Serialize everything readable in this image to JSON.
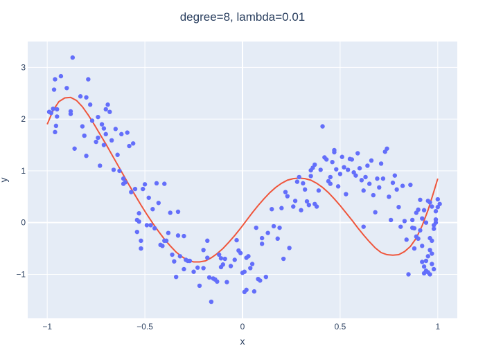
{
  "chart_data": {
    "type": "scatter",
    "title": "degree=8, lambda=0.01",
    "xlabel": "x",
    "ylabel": "y",
    "xlim": [
      -1.1,
      1.1
    ],
    "ylim": [
      -1.85,
      3.5
    ],
    "x_ticks": [
      -1,
      -0.5,
      0,
      0.5,
      1
    ],
    "x_tick_labels": [
      "−1",
      "−0.5",
      "0",
      "0.5",
      "1"
    ],
    "y_ticks": [
      -1,
      0,
      1,
      2,
      3
    ],
    "y_tick_labels": [
      "−1",
      "0",
      "1",
      "2",
      "3"
    ],
    "grid": true,
    "legend": "none",
    "colors": {
      "plot_background": "#e5ecf6",
      "grid": "#ffffff",
      "points": "#636efa",
      "fit_line": "#ef553b"
    },
    "series": [
      {
        "type": "scatter",
        "points": [
          [
            -0.99,
            2.14
          ],
          [
            -0.98,
            2.12
          ],
          [
            -0.97,
            2.2
          ],
          [
            -0.965,
            2.57
          ],
          [
            -0.96,
            2.77
          ],
          [
            -0.96,
            1.75
          ],
          [
            -0.955,
            1.87
          ],
          [
            -0.95,
            2.05
          ],
          [
            -0.95,
            2.19
          ],
          [
            -0.93,
            2.83
          ],
          [
            -0.9,
            2.6
          ],
          [
            -0.88,
            2.1
          ],
          [
            -0.88,
            2.15
          ],
          [
            -0.87,
            3.19
          ],
          [
            -0.86,
            1.43
          ],
          [
            -0.83,
            2.44
          ],
          [
            -0.82,
            1.86
          ],
          [
            -0.81,
            1.68
          ],
          [
            -0.8,
            1.29
          ],
          [
            -0.8,
            2.42
          ],
          [
            -0.79,
            2.77
          ],
          [
            -0.78,
            2.28
          ],
          [
            -0.77,
            1.97
          ],
          [
            -0.75,
            1.56
          ],
          [
            -0.74,
            1.64
          ],
          [
            -0.74,
            2.04
          ],
          [
            -0.73,
            1.1
          ],
          [
            -0.72,
            1.9
          ],
          [
            -0.71,
            1.5
          ],
          [
            -0.71,
            1.82
          ],
          [
            -0.7,
            1.71
          ],
          [
            -0.7,
            2.19
          ],
          [
            -0.69,
            2.28
          ],
          [
            -0.68,
            2.14
          ],
          [
            -0.67,
            1.59
          ],
          [
            -0.66,
            1.02
          ],
          [
            -0.65,
            1.81
          ],
          [
            -0.64,
            1.31
          ],
          [
            -0.63,
            1.0
          ],
          [
            -0.62,
            1.71
          ],
          [
            -0.61,
            0.75
          ],
          [
            -0.61,
            0.85
          ],
          [
            -0.6,
            0.78
          ],
          [
            -0.59,
            1.74
          ],
          [
            -0.58,
            1.48
          ],
          [
            -0.57,
            0.59
          ],
          [
            -0.56,
            1.53
          ],
          [
            -0.55,
            0.65
          ],
          [
            -0.54,
            0.05
          ],
          [
            -0.54,
            -0.18
          ],
          [
            -0.53,
            0.18
          ],
          [
            -0.53,
            0.02
          ],
          [
            -0.52,
            -0.5
          ],
          [
            -0.52,
            -0.35
          ],
          [
            -0.51,
            0.65
          ],
          [
            -0.5,
            0.74
          ],
          [
            -0.49,
            -0.05
          ],
          [
            -0.48,
            0.48
          ],
          [
            -0.47,
            -0.05
          ],
          [
            -0.46,
            0.26
          ],
          [
            -0.45,
            -0.11
          ],
          [
            -0.44,
            0.76
          ],
          [
            -0.43,
            0.38
          ],
          [
            -0.42,
            -0.43
          ],
          [
            -0.41,
            -0.45
          ],
          [
            -0.4,
            0.75
          ],
          [
            -0.4,
            -0.35
          ],
          [
            -0.39,
            -0.35
          ],
          [
            -0.38,
            -0.2
          ],
          [
            -0.37,
            0.19
          ],
          [
            -0.36,
            -0.62
          ],
          [
            -0.35,
            -0.75
          ],
          [
            -0.34,
            -1.05
          ],
          [
            -0.33,
            0.21
          ],
          [
            -0.33,
            -0.25
          ],
          [
            -0.32,
            -0.65
          ],
          [
            -0.3,
            -0.26
          ],
          [
            -0.3,
            -0.9
          ],
          [
            -0.29,
            -0.72
          ],
          [
            -0.28,
            -0.74
          ],
          [
            -0.27,
            -0.74
          ],
          [
            -0.25,
            -0.95
          ],
          [
            -0.23,
            -0.87
          ],
          [
            -0.22,
            -1.22
          ],
          [
            -0.2,
            -0.88
          ],
          [
            -0.2,
            -0.53
          ],
          [
            -0.18,
            -0.35
          ],
          [
            -0.18,
            -0.68
          ],
          [
            -0.17,
            -1.06
          ],
          [
            -0.16,
            -1.53
          ],
          [
            -0.15,
            -1.08
          ],
          [
            -0.14,
            -1.1
          ],
          [
            -0.13,
            -1.14
          ],
          [
            -0.12,
            -0.62
          ],
          [
            -0.11,
            -0.86
          ],
          [
            -0.11,
            -0.69
          ],
          [
            -0.1,
            -0.81
          ],
          [
            -0.09,
            -0.7
          ],
          [
            -0.08,
            -1.15
          ],
          [
            -0.06,
            -0.84
          ],
          [
            -0.04,
            -0.72
          ],
          [
            -0.03,
            -0.34
          ],
          [
            -0.02,
            -0.54
          ],
          [
            -0.01,
            -0.59
          ],
          [
            0.0,
            -0.97
          ],
          [
            0.01,
            -1.34
          ],
          [
            0.01,
            -0.95
          ],
          [
            0.02,
            -1.3
          ],
          [
            0.02,
            -0.68
          ],
          [
            0.03,
            -0.65
          ],
          [
            0.04,
            -0.88
          ],
          [
            0.05,
            -0.8
          ],
          [
            0.06,
            -1.33
          ],
          [
            0.07,
            -0.1
          ],
          [
            0.08,
            -1.09
          ],
          [
            0.09,
            -1.12
          ],
          [
            0.1,
            -0.41
          ],
          [
            0.1,
            -0.3
          ],
          [
            0.12,
            -1.05
          ],
          [
            0.13,
            -0.2
          ],
          [
            0.15,
            0.26
          ],
          [
            0.16,
            -0.07
          ],
          [
            0.18,
            -0.31
          ],
          [
            0.19,
            -0.1
          ],
          [
            0.2,
            0.28
          ],
          [
            0.21,
            -0.7
          ],
          [
            0.22,
            0.59
          ],
          [
            0.23,
            0.51
          ],
          [
            0.24,
            -0.49
          ],
          [
            0.26,
            0.31
          ],
          [
            0.27,
            0.42
          ],
          [
            0.28,
            0.79
          ],
          [
            0.29,
            0.88
          ],
          [
            0.3,
            0.24
          ],
          [
            0.31,
            0.76
          ],
          [
            0.32,
            0.64
          ],
          [
            0.33,
            0.41
          ],
          [
            0.34,
            0.34
          ],
          [
            0.35,
            0.9
          ],
          [
            0.35,
            1.01
          ],
          [
            0.36,
            1.06
          ],
          [
            0.37,
            0.36
          ],
          [
            0.37,
            1.12
          ],
          [
            0.38,
            0.31
          ],
          [
            0.39,
            0.62
          ],
          [
            0.4,
            1.02
          ],
          [
            0.41,
            1.86
          ],
          [
            0.42,
            1.26
          ],
          [
            0.43,
            1.22
          ],
          [
            0.44,
            0.8
          ],
          [
            0.45,
            0.88
          ],
          [
            0.45,
            0.75
          ],
          [
            0.46,
            1.17
          ],
          [
            0.47,
            1.36
          ],
          [
            0.47,
            1.4
          ],
          [
            0.48,
            1.03
          ],
          [
            0.49,
            0.7
          ],
          [
            0.5,
            0.94
          ],
          [
            0.51,
            1.27
          ],
          [
            0.52,
            1.07
          ],
          [
            0.53,
            0.55
          ],
          [
            0.54,
            1.02
          ],
          [
            0.55,
            1.23
          ],
          [
            0.56,
            1.22
          ],
          [
            0.57,
            0.97
          ],
          [
            0.58,
            0.91
          ],
          [
            0.59,
            1.34
          ],
          [
            0.6,
            1.05
          ],
          [
            0.61,
            0.82
          ],
          [
            0.62,
            0.62
          ],
          [
            0.62,
            -0.08
          ],
          [
            0.63,
            0.88
          ],
          [
            0.64,
            1.1
          ],
          [
            0.65,
            0.75
          ],
          [
            0.66,
            1.2
          ],
          [
            0.67,
            0.53
          ],
          [
            0.68,
            0.2
          ],
          [
            0.69,
            0.85
          ],
          [
            0.7,
            0.68
          ],
          [
            0.71,
            1.14
          ],
          [
            0.72,
            0.85
          ],
          [
            0.73,
            1.37
          ],
          [
            0.74,
            1.43
          ],
          [
            0.75,
            0.5
          ],
          [
            0.76,
            0.05
          ],
          [
            0.77,
            0.77
          ],
          [
            0.78,
            0.91
          ],
          [
            0.79,
            0.64
          ],
          [
            0.8,
            0.3
          ],
          [
            0.81,
            -0.08
          ],
          [
            0.82,
            0.71
          ],
          [
            0.83,
            0.03
          ],
          [
            0.84,
            -0.33
          ],
          [
            0.85,
            -1.0
          ],
          [
            0.86,
            0.73
          ],
          [
            0.87,
            0.05
          ],
          [
            0.88,
            -0.11
          ],
          [
            0.89,
            -0.27
          ],
          [
            0.9,
            -0.31
          ],
          [
            0.91,
            -0.15
          ],
          [
            0.92,
            -0.45
          ],
          [
            0.92,
            -0.76
          ],
          [
            0.93,
            -0.98
          ],
          [
            0.94,
            -0.74
          ],
          [
            0.95,
            -0.65
          ],
          [
            0.96,
            -0.53
          ],
          [
            0.96,
            -0.3
          ],
          [
            0.97,
            -0.35
          ],
          [
            0.97,
            -0.6
          ],
          [
            0.98,
            -0.05
          ],
          [
            0.98,
            -0.9
          ],
          [
            0.99,
            0.06
          ],
          [
            0.99,
            0.22
          ],
          [
            1.0,
            0.3
          ],
          [
            1.0,
            0.45
          ],
          [
            1.01,
            0.36
          ],
          [
            0.93,
            -0.85
          ],
          [
            0.94,
            -0.93
          ],
          [
            0.95,
            -0.96
          ],
          [
            0.96,
            -1.0
          ],
          [
            0.97,
            -0.8
          ],
          [
            0.98,
            -0.12
          ],
          [
            0.99,
            0.0
          ],
          [
            0.88,
            -0.5
          ],
          [
            0.87,
            -0.1
          ],
          [
            0.89,
            0.19
          ],
          [
            0.9,
            0.25
          ],
          [
            0.91,
            0.44
          ],
          [
            0.92,
            0.08
          ],
          [
            0.93,
            0.24
          ],
          [
            0.94,
            0.0
          ],
          [
            0.95,
            0.42
          ],
          [
            0.96,
            0.39
          ],
          [
            0.97,
            0.31
          ]
        ]
      },
      {
        "type": "line",
        "points": [
          [
            -1.0,
            1.9
          ],
          [
            -0.97,
            2.17
          ],
          [
            -0.94,
            2.34
          ],
          [
            -0.91,
            2.41
          ],
          [
            -0.88,
            2.42
          ],
          [
            -0.85,
            2.36
          ],
          [
            -0.82,
            2.24
          ],
          [
            -0.79,
            2.08
          ],
          [
            -0.76,
            1.9
          ],
          [
            -0.73,
            1.71
          ],
          [
            -0.7,
            1.52
          ],
          [
            -0.67,
            1.32
          ],
          [
            -0.64,
            1.12
          ],
          [
            -0.61,
            0.92
          ],
          [
            -0.58,
            0.72
          ],
          [
            -0.55,
            0.53
          ],
          [
            -0.52,
            0.34
          ],
          [
            -0.49,
            0.16
          ],
          [
            -0.46,
            -0.01
          ],
          [
            -0.43,
            -0.17
          ],
          [
            -0.4,
            -0.32
          ],
          [
            -0.37,
            -0.45
          ],
          [
            -0.34,
            -0.57
          ],
          [
            -0.31,
            -0.66
          ],
          [
            -0.28,
            -0.73
          ],
          [
            -0.25,
            -0.76
          ],
          [
            -0.22,
            -0.76
          ],
          [
            -0.19,
            -0.74
          ],
          [
            -0.16,
            -0.68
          ],
          [
            -0.13,
            -0.6
          ],
          [
            -0.1,
            -0.5
          ],
          [
            -0.07,
            -0.38
          ],
          [
            -0.04,
            -0.25
          ],
          [
            -0.01,
            -0.11
          ],
          [
            0.02,
            0.04
          ],
          [
            0.05,
            0.19
          ],
          [
            0.08,
            0.33
          ],
          [
            0.11,
            0.46
          ],
          [
            0.14,
            0.58
          ],
          [
            0.17,
            0.68
          ],
          [
            0.2,
            0.76
          ],
          [
            0.23,
            0.82
          ],
          [
            0.26,
            0.85
          ],
          [
            0.29,
            0.86
          ],
          [
            0.32,
            0.85
          ],
          [
            0.35,
            0.82
          ],
          [
            0.38,
            0.76
          ],
          [
            0.41,
            0.68
          ],
          [
            0.44,
            0.58
          ],
          [
            0.47,
            0.46
          ],
          [
            0.5,
            0.33
          ],
          [
            0.53,
            0.19
          ],
          [
            0.56,
            0.05
          ],
          [
            0.59,
            -0.1
          ],
          [
            0.62,
            -0.24
          ],
          [
            0.65,
            -0.37
          ],
          [
            0.68,
            -0.49
          ],
          [
            0.71,
            -0.58
          ],
          [
            0.74,
            -0.62
          ],
          [
            0.77,
            -0.63
          ],
          [
            0.8,
            -0.62
          ],
          [
            0.83,
            -0.56
          ],
          [
            0.86,
            -0.46
          ],
          [
            0.89,
            -0.3
          ],
          [
            0.92,
            -0.06
          ],
          [
            0.95,
            0.24
          ],
          [
            0.98,
            0.6
          ],
          [
            1.0,
            0.85
          ]
        ]
      }
    ]
  }
}
